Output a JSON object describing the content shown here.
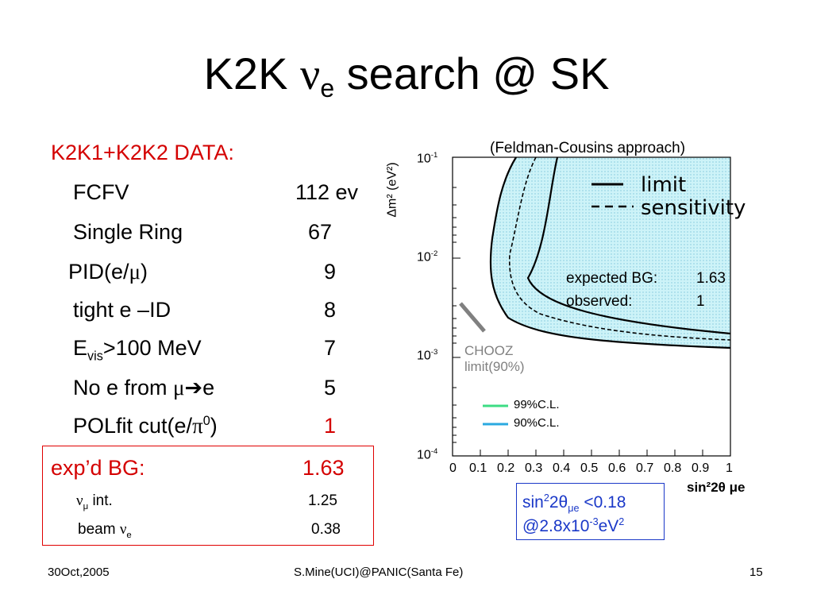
{
  "slide": {
    "title_main": "K2K ",
    "title_nu": "ν",
    "title_sub": "e",
    "title_rest": " search @ SK"
  },
  "table": {
    "header": "K2K1+K2K2 DATA:",
    "rows": [
      {
        "label": "FCFV",
        "value": "112 ev"
      },
      {
        "label": "Single Ring",
        "value": "67"
      },
      {
        "label_pre": "PID(e/",
        "label_mu": "μ",
        "label_post": ")",
        "value": "9"
      },
      {
        "label": "tight e –ID",
        "value": "8"
      },
      {
        "label_pre": "E",
        "label_sub": "vis",
        "label_post": ">100 MeV",
        "value": "7"
      },
      {
        "label_pre": "No e from ",
        "label_mu": "μ",
        "label_arrow": "➔",
        "label_post": "e",
        "value": "5"
      },
      {
        "label_pre": "POLfit cut(e/",
        "label_pi": "π",
        "label_sup": "0",
        "label_post": ")",
        "value": "1"
      }
    ]
  },
  "background": {
    "label": "exp’d BG:",
    "value": "1.63",
    "numu_nu": "ν",
    "numu_sub": "μ",
    "numu_label": " int.",
    "numu_value": "1.25",
    "beam_label": "beam ",
    "beam_nu": "ν",
    "beam_sub": "e",
    "beam_value": "0.38"
  },
  "plot": {
    "approach_label": "(Feldman-Cousins approach)",
    "legend_limit": "limit",
    "legend_sensitivity": "sensitivity",
    "expected_bg_label": "expected BG:",
    "expected_bg_value": "1.63",
    "observed_label": "observed:",
    "observed_value": "1",
    "chooz_line1": "CHOOZ",
    "chooz_line2": "limit(90%)",
    "cl99_label": "99%C.L.",
    "cl90_label": "90%C.L.",
    "ylabel": "Δm² (eV²)",
    "xlabel": "sin²2θ μe",
    "y_ticks": [
      {
        "base": "10",
        "exp": "-1"
      },
      {
        "base": "10",
        "exp": "-2"
      },
      {
        "base": "10",
        "exp": "-3"
      },
      {
        "base": "10",
        "exp": "-4"
      }
    ],
    "x_ticks": [
      "0",
      "0.1",
      "0.2",
      "0.3",
      "0.4",
      "0.5",
      "0.6",
      "0.7",
      "0.8",
      "0.9",
      "1"
    ],
    "colors": {
      "cl99": "#3ddc84",
      "cl90": "#2aa9e0",
      "fill": "#cdf3f8",
      "chooz": "#808080"
    }
  },
  "result": {
    "line1_pre": "sin",
    "line1_sup": "2",
    "line1_mid": "2θ",
    "line1_sub": "μe",
    "line1_post": " <0.18",
    "line2_pre": "@2.8x10",
    "line2_sup": "-3",
    "line2_mid": "eV",
    "line2_sup2": "2"
  },
  "footer": {
    "date": "30Oct,2005",
    "author": "S.Mine(UCI)@PANIC(Santa Fe)",
    "page": "15"
  }
}
